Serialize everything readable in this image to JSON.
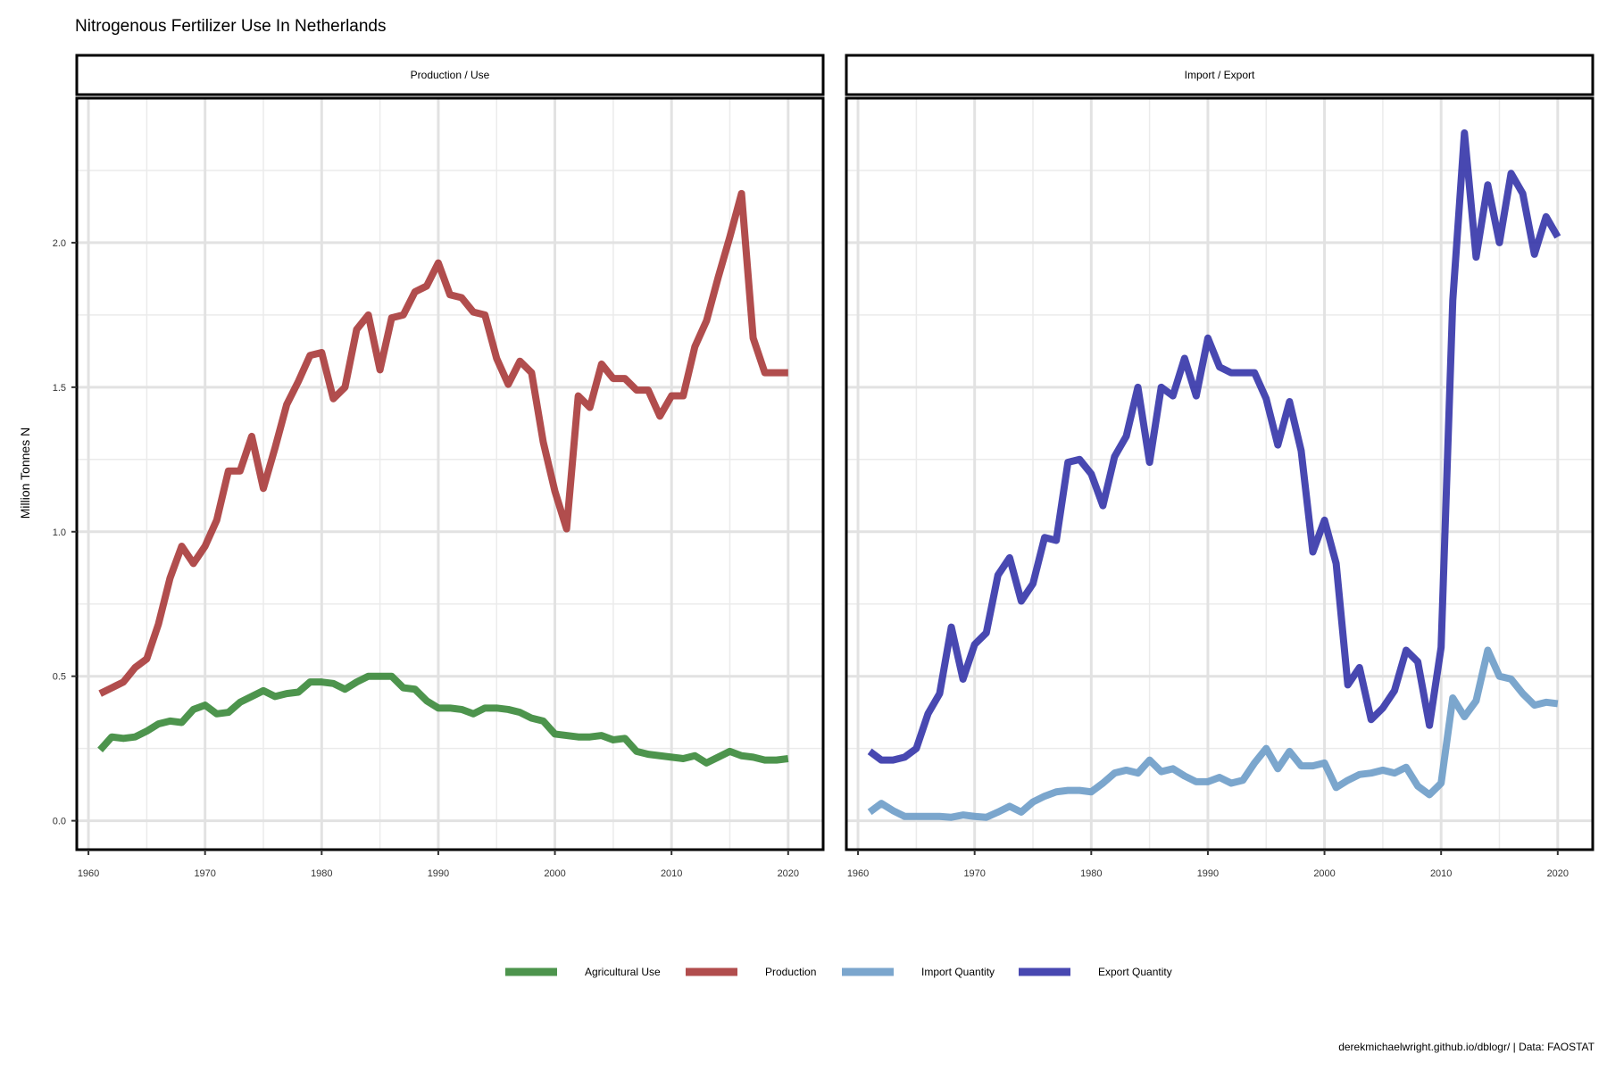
{
  "chart_data": {
    "type": "line",
    "title": "Nitrogenous Fertilizer Use In Netherlands",
    "ylabel": "Million Tonnes N",
    "caption": "derekmichaelwright.github.io/dblogr/ | Data: FAOSTAT",
    "xlim": [
      1959,
      2023
    ],
    "ylim": [
      -0.1,
      2.5
    ],
    "x_ticks": [
      1960,
      1970,
      1980,
      1990,
      2000,
      2010,
      2020
    ],
    "y_ticks": [
      0.0,
      0.5,
      1.0,
      1.5,
      2.0
    ],
    "y_tick_labels": [
      "0.0",
      "0.5",
      "1.0",
      "1.5",
      "2.0"
    ],
    "grid": true,
    "legend_position": "bottom",
    "facets": [
      {
        "label": "Production / Use",
        "series": [
          {
            "name": "Agricultural Use",
            "color": "#3a883a",
            "x": [
              1961,
              1962,
              1963,
              1964,
              1965,
              1966,
              1967,
              1968,
              1969,
              1970,
              1971,
              1972,
              1973,
              1974,
              1975,
              1976,
              1977,
              1978,
              1979,
              1980,
              1981,
              1982,
              1983,
              1984,
              1985,
              1986,
              1987,
              1988,
              1989,
              1990,
              1991,
              1992,
              1993,
              1994,
              1995,
              1996,
              1997,
              1998,
              1999,
              2000,
              2001,
              2002,
              2003,
              2004,
              2005,
              2006,
              2007,
              2008,
              2009,
              2010,
              2011,
              2012,
              2013,
              2014,
              2015,
              2016,
              2017,
              2018,
              2019,
              2020
            ],
            "values": [
              0.245,
              0.29,
              0.285,
              0.29,
              0.31,
              0.335,
              0.345,
              0.34,
              0.385,
              0.4,
              0.37,
              0.375,
              0.41,
              0.43,
              0.45,
              0.43,
              0.44,
              0.445,
              0.48,
              0.48,
              0.475,
              0.455,
              0.48,
              0.5,
              0.5,
              0.5,
              0.46,
              0.455,
              0.415,
              0.39,
              0.39,
              0.385,
              0.37,
              0.39,
              0.39,
              0.385,
              0.375,
              0.355,
              0.345,
              0.3,
              0.295,
              0.29,
              0.29,
              0.295,
              0.28,
              0.285,
              0.24,
              0.23,
              0.225,
              0.22,
              0.215,
              0.225,
              0.2,
              0.22,
              0.24,
              0.225,
              0.22,
              0.21,
              0.21,
              0.215
            ]
          },
          {
            "name": "Production",
            "color": "#a83a3a",
            "x": [
              1961,
              1962,
              1963,
              1964,
              1965,
              1966,
              1967,
              1968,
              1969,
              1970,
              1971,
              1972,
              1973,
              1974,
              1975,
              1976,
              1977,
              1978,
              1979,
              1980,
              1981,
              1982,
              1983,
              1984,
              1985,
              1986,
              1987,
              1988,
              1989,
              1990,
              1991,
              1992,
              1993,
              1994,
              1995,
              1996,
              1997,
              1998,
              1999,
              2000,
              2001,
              2002,
              2003,
              2004,
              2005,
              2006,
              2007,
              2008,
              2009,
              2010,
              2011,
              2012,
              2013,
              2014,
              2015,
              2016,
              2017,
              2018,
              2019,
              2020
            ],
            "values": [
              0.44,
              0.46,
              0.48,
              0.53,
              0.56,
              0.68,
              0.84,
              0.95,
              0.89,
              0.95,
              1.04,
              1.21,
              1.21,
              1.33,
              1.15,
              1.29,
              1.44,
              1.52,
              1.61,
              1.62,
              1.46,
              1.5,
              1.7,
              1.75,
              1.56,
              1.74,
              1.75,
              1.83,
              1.85,
              1.93,
              1.82,
              1.81,
              1.76,
              1.75,
              1.6,
              1.51,
              1.59,
              1.55,
              1.31,
              1.14,
              1.01,
              1.47,
              1.43,
              1.58,
              1.53,
              1.53,
              1.49,
              1.49,
              1.4,
              1.47,
              1.47,
              1.64,
              1.73,
              1.88,
              2.02,
              2.17,
              1.67,
              1.55,
              1.55,
              1.55
            ]
          }
        ]
      },
      {
        "label": "Import / Export",
        "series": [
          {
            "name": "Import Quantity",
            "color": "#6d9cc8",
            "x": [
              1961,
              1962,
              1963,
              1964,
              1965,
              1966,
              1967,
              1968,
              1969,
              1970,
              1971,
              1972,
              1973,
              1974,
              1975,
              1976,
              1977,
              1978,
              1979,
              1980,
              1981,
              1982,
              1983,
              1984,
              1985,
              1986,
              1987,
              1988,
              1989,
              1990,
              1991,
              1992,
              1993,
              1994,
              1995,
              1996,
              1997,
              1998,
              1999,
              2000,
              2001,
              2002,
              2003,
              2004,
              2005,
              2006,
              2007,
              2008,
              2009,
              2010,
              2011,
              2012,
              2013,
              2014,
              2015,
              2016,
              2017,
              2018,
              2019,
              2020
            ],
            "values": [
              0.03,
              0.06,
              0.035,
              0.015,
              0.015,
              0.015,
              0.015,
              0.012,
              0.02,
              0.015,
              0.012,
              0.03,
              0.05,
              0.03,
              0.065,
              0.085,
              0.1,
              0.105,
              0.105,
              0.1,
              0.13,
              0.165,
              0.175,
              0.165,
              0.21,
              0.17,
              0.18,
              0.155,
              0.135,
              0.135,
              0.15,
              0.13,
              0.14,
              0.2,
              0.25,
              0.18,
              0.24,
              0.19,
              0.19,
              0.2,
              0.115,
              0.14,
              0.16,
              0.165,
              0.175,
              0.165,
              0.185,
              0.12,
              0.09,
              0.13,
              0.425,
              0.36,
              0.415,
              0.59,
              0.5,
              0.49,
              0.44,
              0.4,
              0.41,
              0.405
            ]
          },
          {
            "name": "Export Quantity",
            "color": "#3434a8",
            "x": [
              1961,
              1962,
              1963,
              1964,
              1965,
              1966,
              1967,
              1968,
              1969,
              1970,
              1971,
              1972,
              1973,
              1974,
              1975,
              1976,
              1977,
              1978,
              1979,
              1980,
              1981,
              1982,
              1983,
              1984,
              1985,
              1986,
              1987,
              1988,
              1989,
              1990,
              1991,
              1992,
              1993,
              1994,
              1995,
              1996,
              1997,
              1998,
              1999,
              2000,
              2001,
              2002,
              2003,
              2004,
              2005,
              2006,
              2007,
              2008,
              2009,
              2010,
              2011,
              2012,
              2013,
              2014,
              2015,
              2016,
              2017,
              2018,
              2019,
              2020
            ],
            "values": [
              0.24,
              0.21,
              0.21,
              0.22,
              0.25,
              0.37,
              0.44,
              0.67,
              0.49,
              0.61,
              0.65,
              0.85,
              0.91,
              0.76,
              0.82,
              0.98,
              0.97,
              1.24,
              1.25,
              1.2,
              1.09,
              1.26,
              1.33,
              1.5,
              1.24,
              1.5,
              1.47,
              1.6,
              1.47,
              1.67,
              1.57,
              1.55,
              1.55,
              1.55,
              1.46,
              1.3,
              1.45,
              1.28,
              0.93,
              1.04,
              0.89,
              0.47,
              0.53,
              0.35,
              0.39,
              0.45,
              0.59,
              0.55,
              0.33,
              0.6,
              1.8,
              2.38,
              1.95,
              2.2,
              2.0,
              2.24,
              2.17,
              1.96,
              2.09,
              2.02
            ]
          }
        ]
      }
    ],
    "legend": [
      "Agricultural Use",
      "Production",
      "Import Quantity",
      "Export Quantity"
    ]
  }
}
